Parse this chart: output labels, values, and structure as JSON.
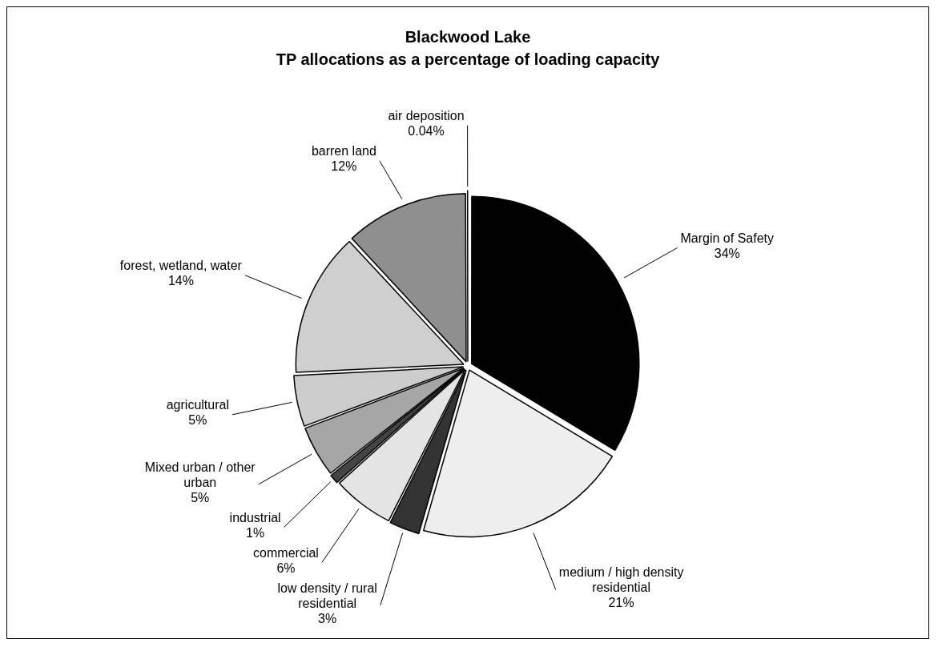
{
  "chart_data": {
    "type": "pie",
    "title": "Blackwood Lake",
    "subtitle": "TP allocations as a percentage of loading capacity",
    "categories": [
      "Margin of Safety",
      "medium / high density residential",
      "low density / rural residential",
      "commercial",
      "industrial",
      "Mixed urban / other urban",
      "agricultural",
      "forest, wetland, water",
      "barren land",
      "air deposition"
    ],
    "values": [
      34,
      21,
      3,
      6,
      1,
      5,
      5,
      14,
      12,
      0.04
    ],
    "value_labels": [
      "34%",
      "21%",
      "3%",
      "6%",
      "1%",
      "5%",
      "5%",
      "14%",
      "12%",
      "0.04%"
    ],
    "colors": [
      "#000000",
      "#eeeeee",
      "#333333",
      "#e4e4e4",
      "#444444",
      "#a6a6a6",
      "#cccccc",
      "#cfcfcf",
      "#8f8f8f",
      "#ffffff"
    ],
    "legend": false
  }
}
